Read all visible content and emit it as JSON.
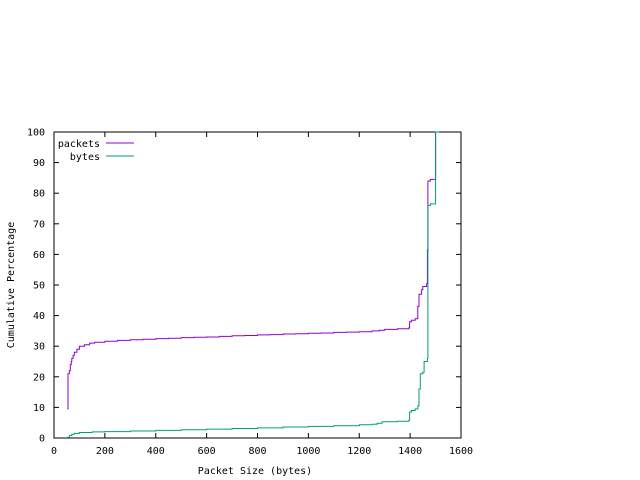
{
  "chart_data": {
    "type": "line",
    "xlabel": "Packet Size (bytes)",
    "ylabel": "Cumulative Percentage",
    "xlim": [
      0,
      1600
    ],
    "ylim": [
      0,
      100
    ],
    "x_ticks": [
      0,
      200,
      400,
      600,
      800,
      1000,
      1200,
      1400,
      1600
    ],
    "y_ticks": [
      0,
      10,
      20,
      30,
      40,
      50,
      60,
      70,
      80,
      90,
      100
    ],
    "grid": false,
    "legend_position": "top-left",
    "step": true,
    "series": [
      {
        "name": "packets",
        "color": "#9400d3",
        "points": [
          [
            52,
            9.5
          ],
          [
            54,
            9.5
          ],
          [
            55,
            21
          ],
          [
            60,
            22
          ],
          [
            64,
            24
          ],
          [
            68,
            25
          ],
          [
            70,
            26
          ],
          [
            75,
            27
          ],
          [
            80,
            28
          ],
          [
            90,
            29
          ],
          [
            100,
            30
          ],
          [
            120,
            30.5
          ],
          [
            140,
            31
          ],
          [
            160,
            31.3
          ],
          [
            200,
            31.6
          ],
          [
            250,
            31.9
          ],
          [
            300,
            32.1
          ],
          [
            350,
            32.3
          ],
          [
            400,
            32.5
          ],
          [
            450,
            32.6
          ],
          [
            500,
            32.8
          ],
          [
            550,
            32.9
          ],
          [
            600,
            33.0
          ],
          [
            650,
            33.2
          ],
          [
            700,
            33.4
          ],
          [
            750,
            33.5
          ],
          [
            800,
            33.7
          ],
          [
            850,
            33.8
          ],
          [
            900,
            34.0
          ],
          [
            950,
            34.1
          ],
          [
            1000,
            34.2
          ],
          [
            1050,
            34.3
          ],
          [
            1100,
            34.5
          ],
          [
            1150,
            34.6
          ],
          [
            1200,
            34.7
          ],
          [
            1250,
            35.0
          ],
          [
            1280,
            35.2
          ],
          [
            1300,
            35.5
          ],
          [
            1350,
            35.7
          ],
          [
            1395,
            36.0
          ],
          [
            1398,
            38.0
          ],
          [
            1405,
            38.5
          ],
          [
            1420,
            39.0
          ],
          [
            1430,
            43.0
          ],
          [
            1435,
            47.0
          ],
          [
            1445,
            48.5
          ],
          [
            1450,
            49.5
          ],
          [
            1465,
            50.5
          ],
          [
            1468,
            61.5
          ],
          [
            1470,
            84.0
          ],
          [
            1480,
            84.5
          ],
          [
            1500,
            85.0
          ],
          [
            1500,
            100
          ],
          [
            1514,
            100
          ]
        ]
      },
      {
        "name": "bytes",
        "color": "#009e73",
        "points": [
          [
            52,
            0.2
          ],
          [
            60,
            0.8
          ],
          [
            70,
            1.2
          ],
          [
            80,
            1.5
          ],
          [
            100,
            1.8
          ],
          [
            150,
            2.0
          ],
          [
            200,
            2.1
          ],
          [
            300,
            2.3
          ],
          [
            400,
            2.5
          ],
          [
            500,
            2.7
          ],
          [
            600,
            2.9
          ],
          [
            700,
            3.1
          ],
          [
            800,
            3.3
          ],
          [
            900,
            3.6
          ],
          [
            1000,
            3.8
          ],
          [
            1100,
            4.0
          ],
          [
            1200,
            4.3
          ],
          [
            1250,
            4.5
          ],
          [
            1270,
            4.8
          ],
          [
            1290,
            5.3
          ],
          [
            1350,
            5.5
          ],
          [
            1395,
            5.8
          ],
          [
            1398,
            8.5
          ],
          [
            1405,
            9.0
          ],
          [
            1420,
            9.5
          ],
          [
            1430,
            10.5
          ],
          [
            1435,
            16.0
          ],
          [
            1440,
            21.0
          ],
          [
            1450,
            21.5
          ],
          [
            1455,
            25.0
          ],
          [
            1468,
            26.0
          ],
          [
            1470,
            76.0
          ],
          [
            1480,
            76.5
          ],
          [
            1500,
            77.5
          ],
          [
            1500,
            100
          ],
          [
            1514,
            100
          ]
        ]
      }
    ]
  }
}
